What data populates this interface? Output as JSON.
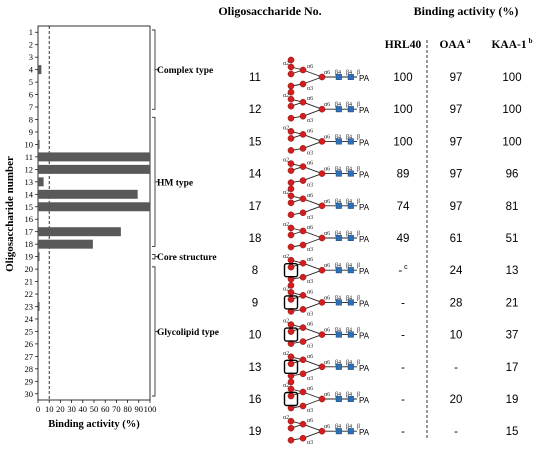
{
  "chart_data": {
    "type": "bar",
    "orientation": "horizontal",
    "ylabel": "Oligosaccharide number",
    "xlabel": "Binding activity (%)",
    "xlim": [
      0,
      100
    ],
    "xticks": [
      "0",
      "10",
      "20",
      "30",
      "40",
      "50",
      "60",
      "70",
      "80",
      "90",
      "100"
    ],
    "reference_line_x": 10,
    "categories": [
      "1",
      "2",
      "3",
      "4",
      "5",
      "6",
      "7",
      "8",
      "9",
      "10",
      "11",
      "12",
      "13",
      "14",
      "15",
      "16",
      "17",
      "18",
      "19",
      "20",
      "21",
      "22",
      "23",
      "24",
      "25",
      "26",
      "27",
      "28",
      "29",
      "30"
    ],
    "values": [
      0,
      0,
      0,
      3,
      0,
      0,
      0,
      0,
      0,
      1,
      100,
      100,
      5,
      89,
      100,
      0,
      74,
      49,
      1,
      0,
      0,
      0,
      1,
      0,
      0,
      0,
      0,
      0,
      0,
      0
    ],
    "groups": [
      {
        "label": "Complex type",
        "from": 1,
        "to": 7
      },
      {
        "label": "HM type",
        "from": 8,
        "to": 18
      },
      {
        "label": "Core structure",
        "from": 19,
        "to": 19
      },
      {
        "label": "Glycolipid  type",
        "from": 20,
        "to": 30
      }
    ]
  },
  "table": {
    "header_no": "Oligosaccharide No.",
    "header_binding": "Binding activity (%)",
    "col_hrl": "HRL40",
    "col_oaa": "OAA",
    "col_oaa_sup": "a",
    "col_kaa": "KAA-1",
    "col_kaa_sup": "b",
    "pa_label": "PA",
    "rows": [
      {
        "no": "11",
        "hrl": "100",
        "oaa": "97",
        "kaa": "100"
      },
      {
        "no": "12",
        "hrl": "100",
        "oaa": "97",
        "kaa": "100"
      },
      {
        "no": "15",
        "hrl": "100",
        "oaa": "97",
        "kaa": "100"
      },
      {
        "no": "14",
        "hrl": "89",
        "oaa": "97",
        "kaa": "96"
      },
      {
        "no": "17",
        "hrl": "74",
        "oaa": "97",
        "kaa": "81"
      },
      {
        "no": "18",
        "hrl": "49",
        "oaa": "61",
        "kaa": "51"
      },
      {
        "no": "8",
        "hrl": "-",
        "hrl_sup": "c",
        "oaa": "24",
        "kaa": "13"
      },
      {
        "no": "9",
        "hrl": "-",
        "oaa": "28",
        "kaa": "21"
      },
      {
        "no": "10",
        "hrl": "-",
        "oaa": "10",
        "kaa": "37"
      },
      {
        "no": "13",
        "hrl": "-",
        "oaa": "-",
        "kaa": "17"
      },
      {
        "no": "16",
        "hrl": "-",
        "oaa": "20",
        "kaa": "19"
      },
      {
        "no": "19",
        "hrl": "-",
        "oaa": "-",
        "kaa": "15"
      }
    ]
  },
  "colors": {
    "bar": "#595959",
    "mannose": "#d21e1e",
    "glcnac": "#2e6fb5",
    "bracket": "#333333"
  }
}
